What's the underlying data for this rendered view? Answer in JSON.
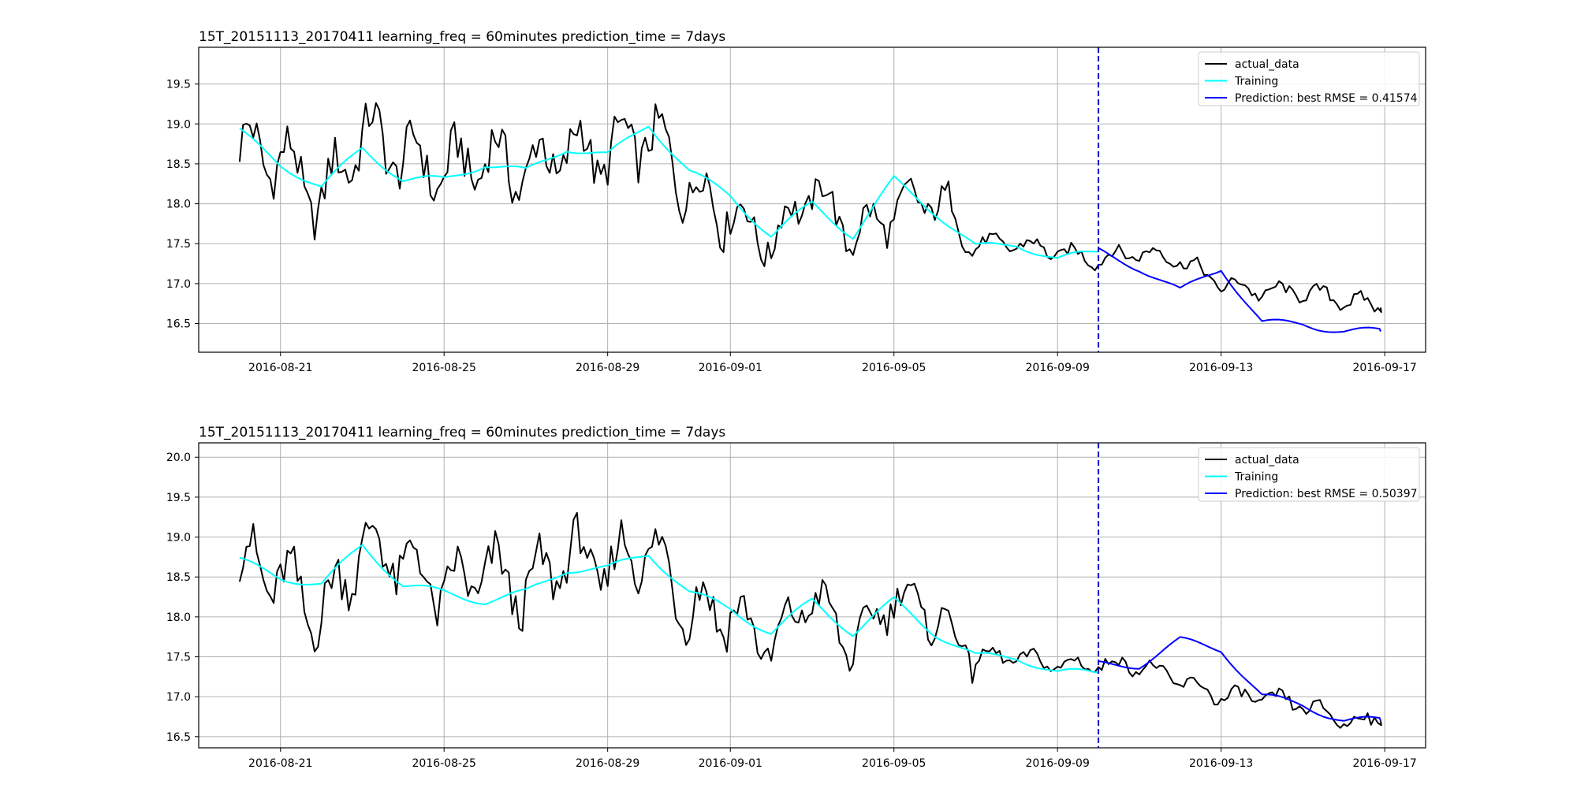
{
  "chart_data": [
    {
      "type": "line",
      "title": "15T_20151113_20170411  learning_freq = 60minutes    prediction_time = 7days",
      "xlabel": "",
      "ylabel": "",
      "x_range": [
        "2016-08-19",
        "2016-09-18"
      ],
      "x_ticks": [
        "2016-08-21",
        "2016-08-25",
        "2016-08-29",
        "2016-09-01",
        "2016-09-05",
        "2016-09-09",
        "2016-09-13",
        "2016-09-17"
      ],
      "ylim": [
        16.14,
        19.96
      ],
      "y_ticks": [
        16.5,
        17.0,
        17.5,
        18.0,
        18.5,
        19.0,
        19.5
      ],
      "grid": true,
      "legend_position": "top-right",
      "split_date": "2016-09-10",
      "series": [
        {
          "name": "actual_data",
          "color": "#000000",
          "x": [
            "2016-08-20",
            "2016-08-21",
            "2016-08-22",
            "2016-08-23",
            "2016-08-24",
            "2016-08-25",
            "2016-08-26",
            "2016-08-27",
            "2016-08-28",
            "2016-08-29",
            "2016-08-30",
            "2016-08-31",
            "2016-09-01",
            "2016-09-02",
            "2016-09-03",
            "2016-09-04",
            "2016-09-05",
            "2016-09-06",
            "2016-09-07",
            "2016-09-08",
            "2016-09-09",
            "2016-09-10",
            "2016-09-11",
            "2016-09-12",
            "2016-09-13",
            "2016-09-14",
            "2016-09-15",
            "2016-09-16",
            "2016-09-17"
          ],
          "values": [
            18.7,
            18.6,
            18.0,
            18.9,
            18.6,
            18.4,
            18.6,
            18.4,
            18.7,
            18.6,
            18.9,
            18.2,
            17.9,
            17.5,
            18.2,
            17.6,
            17.9,
            18.1,
            17.5,
            17.5,
            17.4,
            17.3,
            17.4,
            17.3,
            17.0,
            16.9,
            16.9,
            16.8,
            16.7
          ]
        },
        {
          "name": "Training",
          "color": "#00ffff",
          "x": [
            "2016-08-20",
            "2016-08-21",
            "2016-08-22",
            "2016-08-23",
            "2016-08-24",
            "2016-08-25",
            "2016-08-26",
            "2016-08-27",
            "2016-08-28",
            "2016-08-29",
            "2016-08-30",
            "2016-08-31",
            "2016-09-01",
            "2016-09-02",
            "2016-09-03",
            "2016-09-04",
            "2016-09-05",
            "2016-09-06",
            "2016-09-07",
            "2016-09-08",
            "2016-09-09",
            "2016-09-10"
          ],
          "values": [
            18.9,
            18.5,
            18.2,
            18.7,
            18.3,
            18.3,
            18.5,
            18.4,
            18.7,
            18.6,
            19.0,
            18.4,
            18.1,
            17.6,
            18.0,
            17.6,
            18.3,
            17.9,
            17.45,
            17.5,
            17.3,
            17.4
          ]
        },
        {
          "name": "Prediction: best RMSE = 0.41574",
          "color": "#0000ff",
          "x": [
            "2016-09-10",
            "2016-09-11",
            "2016-09-12",
            "2016-09-13",
            "2016-09-14",
            "2016-09-15",
            "2016-09-16",
            "2016-09-17"
          ],
          "values": [
            17.4,
            17.2,
            16.9,
            17.2,
            16.5,
            16.5,
            16.4,
            16.4
          ]
        }
      ]
    },
    {
      "type": "line",
      "title": "15T_20151113_20170411  learning_freq = 60minutes    prediction_time = 7days",
      "xlabel": "",
      "ylabel": "",
      "x_range": [
        "2016-08-19",
        "2016-09-18"
      ],
      "x_ticks": [
        "2016-08-21",
        "2016-08-25",
        "2016-08-29",
        "2016-09-01",
        "2016-09-05",
        "2016-09-09",
        "2016-09-13",
        "2016-09-17"
      ],
      "ylim": [
        16.36,
        20.18
      ],
      "y_ticks": [
        16.5,
        17.0,
        17.5,
        18.0,
        18.5,
        19.0,
        19.5,
        20.0
      ],
      "grid": true,
      "legend_position": "top-right",
      "split_date": "2016-09-10",
      "series": [
        {
          "name": "actual_data",
          "color": "#000000",
          "x": [
            "2016-08-20",
            "2016-08-21",
            "2016-08-22",
            "2016-08-23",
            "2016-08-24",
            "2016-08-25",
            "2016-08-26",
            "2016-08-27",
            "2016-08-28",
            "2016-08-29",
            "2016-08-30",
            "2016-08-31",
            "2016-09-01",
            "2016-09-02",
            "2016-09-03",
            "2016-09-04",
            "2016-09-05",
            "2016-09-06",
            "2016-09-07",
            "2016-09-08",
            "2016-09-09",
            "2016-09-10",
            "2016-09-11",
            "2016-09-12",
            "2016-09-13",
            "2016-09-14",
            "2016-09-15",
            "2016-09-16",
            "2016-09-17"
          ],
          "values": [
            18.7,
            18.5,
            18.0,
            18.9,
            18.7,
            18.3,
            18.6,
            18.3,
            18.8,
            18.6,
            18.9,
            18.1,
            18.1,
            17.6,
            18.3,
            17.6,
            18.3,
            18.0,
            17.5,
            17.5,
            17.4,
            17.4,
            17.4,
            17.2,
            17.0,
            17.0,
            16.9,
            16.7,
            16.7
          ]
        },
        {
          "name": "Training",
          "color": "#00ffff",
          "x": [
            "2016-08-20",
            "2016-08-21",
            "2016-08-22",
            "2016-08-23",
            "2016-08-24",
            "2016-08-25",
            "2016-08-26",
            "2016-08-27",
            "2016-08-28",
            "2016-08-29",
            "2016-08-30",
            "2016-08-31",
            "2016-09-01",
            "2016-09-02",
            "2016-09-03",
            "2016-09-04",
            "2016-09-05",
            "2016-09-06",
            "2016-09-07",
            "2016-09-08",
            "2016-09-09",
            "2016-09-10"
          ],
          "values": [
            18.7,
            18.5,
            18.4,
            18.9,
            18.4,
            18.3,
            18.2,
            18.3,
            18.6,
            18.6,
            18.8,
            18.3,
            18.1,
            17.8,
            18.2,
            17.8,
            18.2,
            17.8,
            17.5,
            17.5,
            17.3,
            17.3
          ]
        },
        {
          "name": "Prediction: best RMSE = 0.50397",
          "color": "#0000ff",
          "x": [
            "2016-09-10",
            "2016-09-11",
            "2016-09-12",
            "2016-09-13",
            "2016-09-14",
            "2016-09-15",
            "2016-09-16",
            "2016-09-17"
          ],
          "values": [
            17.4,
            17.4,
            17.7,
            17.6,
            17.0,
            16.9,
            16.7,
            16.7
          ]
        }
      ]
    }
  ]
}
